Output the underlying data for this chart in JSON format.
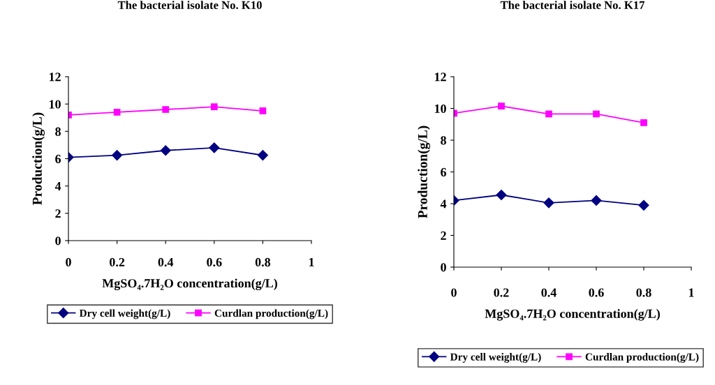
{
  "chart_data": [
    {
      "type": "line",
      "title": "The bacterial isolate No. K10",
      "xlabel": "MgSO₄.7H₂O concentration(g/L)",
      "ylabel": "Production(g/L)",
      "x": [
        0,
        0.2,
        0.4,
        0.6,
        0.8
      ],
      "xlim": [
        0,
        1
      ],
      "xticks": [
        0,
        0.2,
        0.4,
        0.6,
        0.8,
        1
      ],
      "ylim": [
        0,
        12
      ],
      "yticks": [
        0,
        2,
        4,
        6,
        8,
        10,
        12
      ],
      "series": [
        {
          "name": "Dry cell weight(g/L)",
          "color": "#000080",
          "marker": "diamond",
          "values": [
            6.1,
            6.25,
            6.6,
            6.8,
            6.25
          ]
        },
        {
          "name": "Curdlan production(g/L)",
          "color": "#ff00ff",
          "marker": "square",
          "values": [
            9.2,
            9.4,
            9.6,
            9.8,
            9.5
          ]
        }
      ],
      "grid": false,
      "legend": "bottom",
      "line_style": "solid"
    },
    {
      "type": "line",
      "title": "The bacterial isolate No. K17",
      "xlabel": "MgSO₄.7H₂O concentration(g/L)",
      "ylabel": "Production(g/L)",
      "x": [
        0,
        0.2,
        0.4,
        0.6,
        0.8
      ],
      "xlim": [
        0,
        1
      ],
      "xticks": [
        0,
        0.2,
        0.4,
        0.6,
        0.8,
        1
      ],
      "ylim": [
        0,
        12
      ],
      "yticks": [
        0,
        2,
        4,
        6,
        8,
        10,
        12
      ],
      "series": [
        {
          "name": "Dry cell weight(g/L)",
          "color": "#000080",
          "marker": "diamond",
          "values": [
            4.2,
            4.55,
            4.05,
            4.2,
            3.9
          ]
        },
        {
          "name": "Curdlan production(g/L)",
          "color": "#ff00ff",
          "marker": "square",
          "values": [
            9.7,
            10.15,
            9.65,
            9.65,
            9.1
          ]
        }
      ],
      "grid": false,
      "legend": "bottom",
      "line_style": "solid"
    }
  ]
}
